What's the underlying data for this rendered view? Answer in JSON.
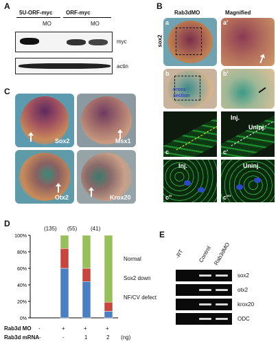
{
  "panelA": {
    "label": "A",
    "lane_headers": [
      "5U-ORF-myc",
      "ORF-myc"
    ],
    "mo_labels": [
      "MO",
      "MO"
    ],
    "row_labels": [
      "myc",
      "actin"
    ]
  },
  "panelB": {
    "label": "B",
    "col_titles": [
      "Rab3dMO",
      "Magnified"
    ],
    "gene": "sox2",
    "sublabels": [
      "a",
      "a'",
      "b",
      "b'",
      "c",
      "c'",
      "c''",
      "c'''"
    ],
    "section_text": "cross section",
    "inj": "Inj.",
    "uninj": "Uninj."
  },
  "panelC": {
    "label": "C",
    "genes": [
      "Sox2",
      "Msx1",
      "Otx2",
      "Krox20"
    ]
  },
  "panelD": {
    "label": "D",
    "counts": [
      "(135)",
      "(55)",
      "(41)"
    ],
    "yticks": [
      "100%",
      "80%",
      "60%",
      "40%",
      "20%",
      "0%"
    ],
    "row_labels": [
      "Rab3d MO",
      "Rab3d mRNA"
    ],
    "mo_values": [
      "-",
      "+",
      "+",
      "+"
    ],
    "mrna_values": [
      "-",
      "-",
      "1",
      "2"
    ],
    "unit": "(ng)"
  },
  "chart_data": {
    "type": "bar",
    "stacked": true,
    "categories": [
      "MO -, mRNA -",
      "MO +, mRNA -",
      "MO +, mRNA 1",
      "MO +, mRNA 2"
    ],
    "series": [
      {
        "name": "NF/CV defect",
        "color": "#4a7fc1",
        "values": [
          0,
          60,
          44,
          8
        ]
      },
      {
        "name": "Sox2 down",
        "color": "#c8443f",
        "values": [
          0,
          24,
          16,
          11
        ]
      },
      {
        "name": "Normal",
        "color": "#98c05a",
        "values": [
          0,
          16,
          40,
          81
        ]
      }
    ],
    "ylim": [
      0,
      100
    ],
    "legend": [
      "Normal",
      "Sox2 down",
      "NF/CV defect"
    ]
  },
  "panelE": {
    "label": "E",
    "col_headers": [
      "-RT",
      "Control",
      "Rab3dMO"
    ],
    "genes": [
      "sox2",
      "otx2",
      "krox20",
      "ODC"
    ]
  }
}
